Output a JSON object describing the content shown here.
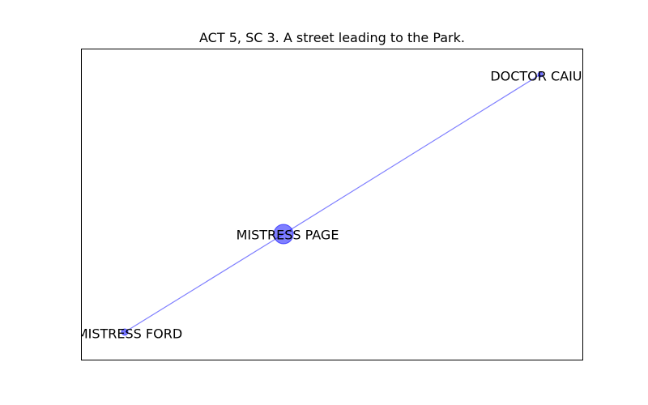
{
  "title": "ACT 5, SC 3. A street leading to the Park.",
  "colors": {
    "node_fill": "#0000ff",
    "edge": "#0000ff",
    "frame": "#000000",
    "background": "#ffffff"
  },
  "nodes": [
    {
      "id": "doctor_caius",
      "label": "DOCTOR CAIUS",
      "weight": 1
    },
    {
      "id": "mistress_page",
      "label": "MISTRESS PAGE",
      "weight": 2
    },
    {
      "id": "mistress_ford",
      "label": "MISTRESS FORD",
      "weight": 1
    }
  ],
  "edges": [
    {
      "source": "mistress_ford",
      "target": "mistress_page"
    },
    {
      "source": "mistress_page",
      "target": "doctor_caius"
    }
  ]
}
